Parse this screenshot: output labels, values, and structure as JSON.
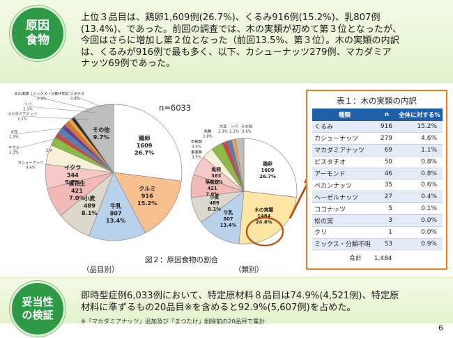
{
  "top_badge": {
    "line1": "原因",
    "line2": "食物"
  },
  "top_text": {
    "line1": "上位３品目は、鶏卵1,609例(26.7%)、くるみ916例(15.2%)、乳807例",
    "line2": "(13.4%)、であった。前回の調査では、木の実類が初めて第３位となったが、",
    "line3": "今回はさらに増加し第２位となった（前回13.5%、第３位）。木の実類の内訳",
    "line4": "は、くるみが916例で最も多く、以下、カシューナッツ279例、マカダミア",
    "line5": "ナッツ69例であった。"
  },
  "bottom_badge": {
    "line1": "妥当性",
    "line2": "の検証"
  },
  "bottom_text": {
    "line1": "即時型症例6,033例において、特定原材料８品目は74.9%(4,521例)、特定原",
    "line2": "材料に準ずるもの20品目※を含めると92.9%(5,607例)を占めた。",
    "note": "※「マカダミアナッツ」追加及び「まつたけ」削除前の20品目で集計"
  },
  "page_number": "6",
  "figure": {
    "caption": "図２：原因食物の割合",
    "left_caption": "（品目別）",
    "right_caption": "（類別）",
    "n_label": "n=6033"
  },
  "chart_data": [
    {
      "type": "pie",
      "title": "品目別",
      "slices": [
        {
          "label": "鶏卵",
          "n": "1609",
          "pct": "26.7%",
          "value": 26.7,
          "color": "#ffffff"
        },
        {
          "label": "クルミ",
          "n": "916",
          "pct": "15.2%",
          "value": 15.2,
          "color": "#f8c08f"
        },
        {
          "label": "牛乳",
          "n": "807",
          "pct": "13.4%",
          "value": 13.4,
          "color": "#b9d2ec"
        },
        {
          "label": "小麦",
          "n": "489",
          "pct": "8.1%",
          "value": 8.1,
          "color": "#dcd8cc"
        },
        {
          "label": "落花生",
          "n": "421",
          "pct": "7.0%",
          "value": 7.0,
          "color": "#f3b9b7"
        },
        {
          "label": "イクラ",
          "n": "344",
          "pct": "5.7%",
          "value": 5.7,
          "color": "#f6c8c6"
        },
        {
          "label": "カシューナッツ",
          "n": "",
          "pct": "4.6%",
          "value": 4.6,
          "color": "#f7f2d6"
        },
        {
          "label": "ゴマ",
          "n": "",
          "pct": "",
          "value": 2.0,
          "color": "#8cbc43"
        },
        {
          "label": "キウイ",
          "n": "",
          "pct": "1.3%",
          "value": 1.3,
          "color": "#c14d4a"
        },
        {
          "label": "大豆",
          "n": "",
          "pct": "1.3%",
          "value": 1.3,
          "color": "#4b7fc0"
        },
        {
          "label": "マカダミアナッツ",
          "n": "",
          "pct": "1.1%",
          "value": 1.1,
          "color": "#6a3d8f"
        },
        {
          "label": "ソバ",
          "n": "",
          "pct": "1.1%",
          "value": 1.1,
          "color": "#e36f1e"
        },
        {
          "label": "木の実類（ミックス・分類不明）",
          "n": "",
          "pct": "0.9%",
          "value": 0.9,
          "color": "#f2a33a"
        },
        {
          "label": "ピスタチオ",
          "n": "",
          "pct": "0.8%",
          "value": 0.8,
          "color": "#2c2c2c"
        },
        {
          "label": "その他",
          "n": "",
          "pct": "9.7%",
          "value": 9.7,
          "color": "#bdbdbd"
        }
      ]
    },
    {
      "type": "pie",
      "title": "類別",
      "slices": [
        {
          "label": "鶏卵",
          "n": "1609",
          "pct": "26.7%",
          "value": 26.7,
          "color": "#ffffff"
        },
        {
          "label": "木の実類",
          "n": "1484",
          "pct": "24.6%",
          "value": 24.6,
          "color": "#ffe6a5"
        },
        {
          "label": "牛乳",
          "n": "807",
          "pct": "13.4%",
          "value": 13.4,
          "color": "#b9d2ec"
        },
        {
          "label": "小麦",
          "n": "489",
          "pct": "8.1%",
          "value": 8.1,
          "color": "#dcd8cc"
        },
        {
          "label": "落花生",
          "n": "421",
          "pct": "7.0%",
          "value": 7.0,
          "color": "#f3b9b7"
        },
        {
          "label": "魚卵",
          "n": "363",
          "pct": "6.0%",
          "value": 6.0,
          "color": "#f6c8c6"
        },
        {
          "label": "果実類",
          "n": "",
          "pct": "3.5%",
          "value": 3.5,
          "color": "#f7f2d6"
        },
        {
          "label": "甲殻類",
          "n": "",
          "pct": "3.5%",
          "value": 3.5,
          "color": "#8cbc43"
        },
        {
          "label": "魚類",
          "n": "",
          "pct": "1.8%",
          "value": 1.8,
          "color": "#c14d4a"
        },
        {
          "label": "大豆",
          "n": "",
          "pct": "1.3%",
          "value": 1.3,
          "color": "#4b7fc0"
        },
        {
          "label": "ソバ",
          "n": "",
          "pct": "1.1%",
          "value": 1.1,
          "color": "#f2a33a"
        },
        {
          "label": "その他",
          "n": "",
          "pct": "2.6%",
          "value": 2.6,
          "color": "#bdbdbd"
        }
      ]
    },
    {
      "type": "table",
      "title": "表１：木の実類の内訳",
      "columns": [
        "種類",
        "n",
        "全体に対する%"
      ],
      "rows": [
        [
          "くるみ",
          "916",
          "15.2%"
        ],
        [
          "カシューナッツ",
          "279",
          "4.6%"
        ],
        [
          "マカダミアナッツ",
          "69",
          "1.1%"
        ],
        [
          "ピスタチオ",
          "50",
          "0.8%"
        ],
        [
          "アーモンド",
          "46",
          "0.8%"
        ],
        [
          "ペカンナッツ",
          "35",
          "0.6%"
        ],
        [
          "ヘーゼルナッツ",
          "27",
          "0.4%"
        ],
        [
          "ココナッツ",
          "5",
          "0.1%"
        ],
        [
          "松の実",
          "3",
          "0.0%"
        ],
        [
          "クリ",
          "1",
          "0.0%"
        ],
        [
          "ミックス・分類不明",
          "53",
          "0.9%"
        ]
      ],
      "total_label": "合計",
      "total_value": "1,484"
    }
  ],
  "colors": {
    "badge": "#2e9a47",
    "table_border": "#e77d1b",
    "table_header": "#1f5ea8",
    "connector": "#b5541a"
  }
}
